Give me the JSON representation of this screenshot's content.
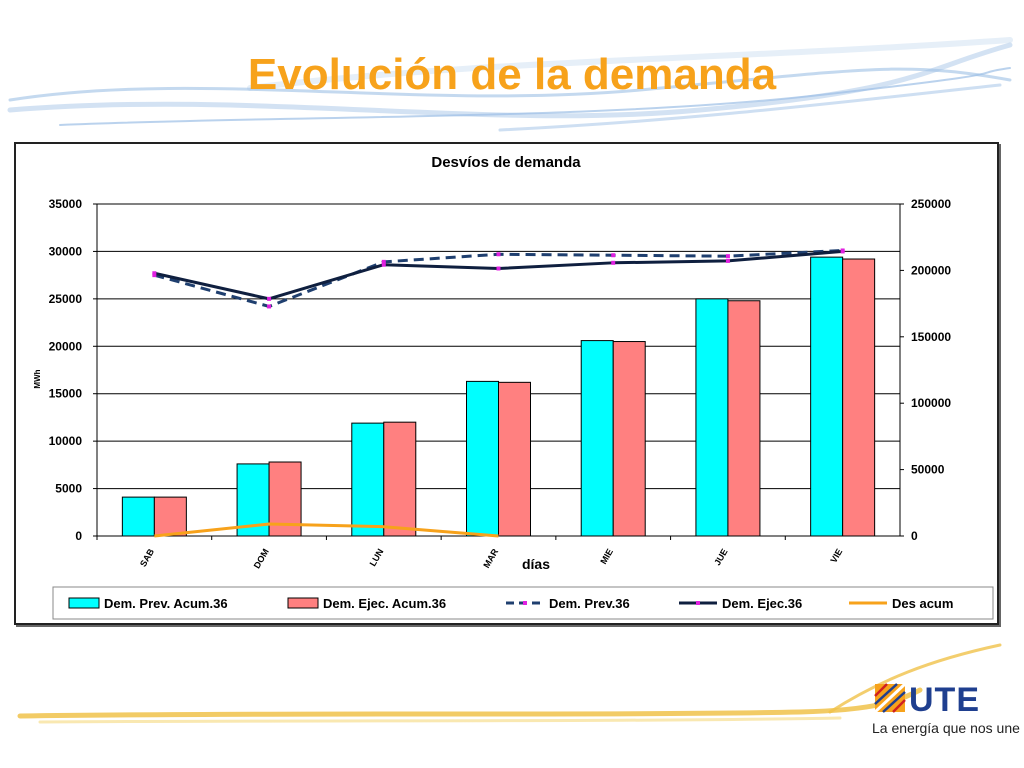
{
  "slide": {
    "title": "Evolución de la demanda",
    "title_color": "#F7A21B",
    "logo_text": "UTE",
    "tagline": "La energía que nos une"
  },
  "colors": {
    "prev_acum": "#00FFFF",
    "ejec_acum": "#FF8080",
    "prev_line": "#1F3F6F",
    "ejec_line": "#0F1F3F",
    "des_acum": "#F7A21B",
    "markers": "#E020E0",
    "swoosh_blue": "#9DBFE5",
    "swoosh_yellow": "#F0C24A"
  },
  "chart_data": {
    "type": "bar",
    "title": "Desvíos de demanda",
    "xlabel": "días",
    "ylabel": "MWh",
    "categories": [
      "SAB",
      "DOM",
      "LUN",
      "MAR",
      "MIE",
      "JUE",
      "VIE"
    ],
    "ylim": [
      0,
      35000
    ],
    "y2lim": [
      0,
      250000
    ],
    "yticks": [
      "0",
      "5000",
      "10000",
      "15000",
      "20000",
      "25000",
      "30000",
      "35000"
    ],
    "y2ticks": [
      "0",
      "50000",
      "100000",
      "150000",
      "200000",
      "250000"
    ],
    "grid": true,
    "legend_position": "bottom",
    "series": [
      {
        "name": "Dem. Prev. Acum.36",
        "kind": "bar",
        "axis": "left",
        "values": [
          4100,
          7600,
          11900,
          16300,
          20600,
          25000,
          29400
        ]
      },
      {
        "name": "Dem. Ejec. Acum.36",
        "kind": "bar",
        "axis": "left",
        "values": [
          4100,
          7800,
          12000,
          16200,
          20500,
          24800,
          29200
        ]
      },
      {
        "name": "Dem. Prev.36",
        "kind": "line",
        "axis": "left",
        "dashed": true,
        "values": [
          27500,
          24200,
          28900,
          29700,
          29600,
          29500,
          30100
        ]
      },
      {
        "name": "Dem. Ejec.36",
        "kind": "line",
        "axis": "left",
        "values": [
          27700,
          25000,
          28600,
          28200,
          28800,
          29000,
          30000
        ]
      },
      {
        "name": "Des acum",
        "kind": "line",
        "axis": "right",
        "values": [
          0,
          9000,
          7000,
          -2000,
          null,
          null,
          null
        ]
      }
    ]
  }
}
